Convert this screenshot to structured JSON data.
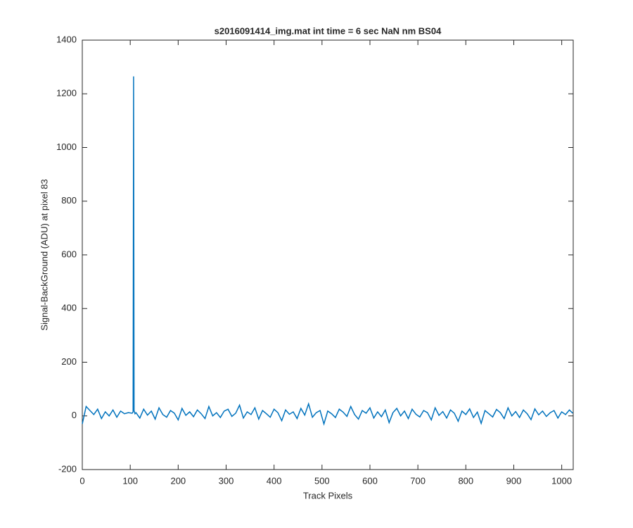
{
  "chart_data": {
    "type": "line",
    "title": "s2016091414_img.mat int time = 6 sec  NaN nm BS04",
    "x_label": "Track Pixels",
    "y_label": "Signal-BackGround (ADU) at pixel 83",
    "xlim": [
      0,
      1024
    ],
    "ylim": [
      -200,
      1400
    ],
    "xticks": [
      0,
      100,
      200,
      300,
      400,
      500,
      600,
      700,
      800,
      900,
      1000
    ],
    "yticks": [
      -200,
      0,
      200,
      400,
      600,
      800,
      1000,
      1200,
      1400
    ],
    "grid": false,
    "series": [
      {
        "color": "#0072bd",
        "x": [
          0,
          8,
          16,
          24,
          32,
          40,
          48,
          56,
          64,
          72,
          80,
          88,
          96,
          104,
          106,
          107,
          108,
          110,
          112,
          120,
          128,
          136,
          144,
          152,
          160,
          168,
          176,
          184,
          192,
          200,
          208,
          216,
          224,
          232,
          240,
          248,
          256,
          264,
          272,
          280,
          288,
          296,
          304,
          312,
          320,
          328,
          336,
          344,
          352,
          360,
          368,
          376,
          384,
          392,
          400,
          408,
          416,
          424,
          432,
          440,
          448,
          456,
          464,
          472,
          480,
          488,
          496,
          504,
          512,
          520,
          528,
          536,
          544,
          552,
          560,
          568,
          576,
          584,
          592,
          600,
          608,
          616,
          624,
          632,
          640,
          648,
          656,
          664,
          672,
          680,
          688,
          696,
          704,
          712,
          720,
          728,
          736,
          744,
          752,
          760,
          768,
          776,
          784,
          792,
          800,
          808,
          816,
          824,
          832,
          840,
          848,
          856,
          864,
          872,
          880,
          888,
          896,
          904,
          912,
          920,
          928,
          936,
          944,
          952,
          960,
          968,
          976,
          984,
          992,
          1000,
          1008,
          1016,
          1023
        ],
        "values": [
          -30,
          35,
          20,
          5,
          25,
          -10,
          15,
          0,
          22,
          -5,
          18,
          8,
          12,
          10,
          15,
          1265,
          20,
          8,
          12,
          -8,
          25,
          3,
          18,
          -12,
          30,
          5,
          -5,
          20,
          10,
          -15,
          28,
          2,
          15,
          -3,
          22,
          8,
          -10,
          35,
          0,
          12,
          -6,
          18,
          25,
          -2,
          10,
          40,
          -8,
          15,
          5,
          30,
          -12,
          20,
          8,
          -5,
          25,
          12,
          -18,
          22,
          6,
          15,
          -10,
          28,
          3,
          45,
          -5,
          12,
          20,
          -30,
          18,
          8,
          -6,
          25,
          14,
          -2,
          35,
          5,
          -12,
          20,
          10,
          30,
          -8,
          15,
          -3,
          22,
          -25,
          12,
          28,
          0,
          18,
          -10,
          25,
          6,
          -4,
          20,
          12,
          -15,
          30,
          2,
          16,
          -8,
          22,
          10,
          -20,
          18,
          5,
          26,
          -6,
          14,
          -28,
          20,
          8,
          -4,
          24,
          12,
          -10,
          30,
          0,
          16,
          -6,
          22,
          8,
          -14,
          26,
          4,
          18,
          -2,
          12,
          20,
          -8,
          15,
          5,
          22,
          10
        ]
      }
    ]
  }
}
